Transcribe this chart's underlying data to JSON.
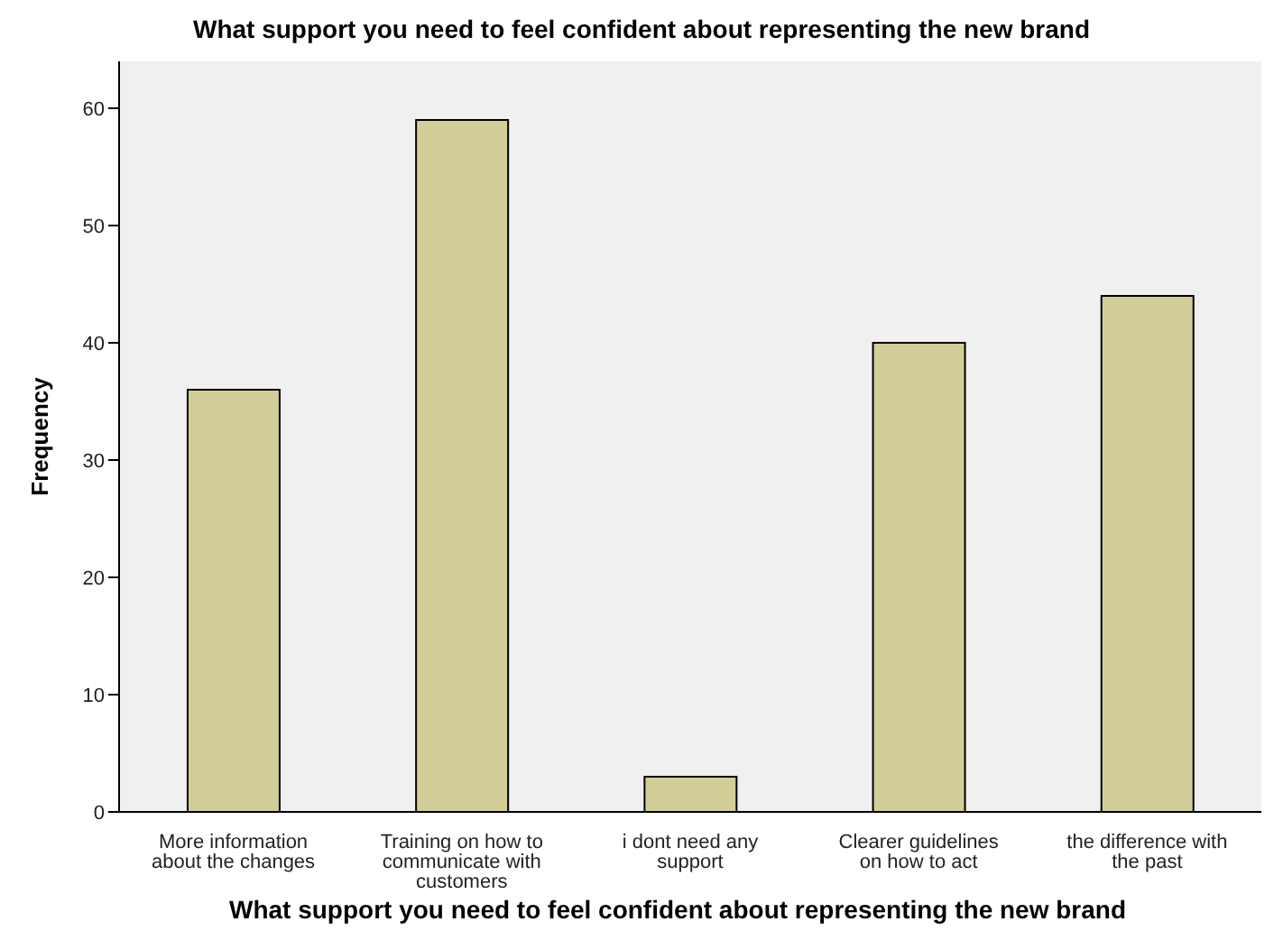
{
  "chart_data": {
    "type": "bar",
    "title": "What support you need to feel confident about representing the new brand",
    "xlabel": "What support you need to feel confident about representing the new brand",
    "ylabel": "Frequency",
    "categories": [
      "More information about the changes",
      "Training on how to communicate with customers",
      "i dont need any support",
      "Clearer guidelines on how to act",
      "the difference with the past"
    ],
    "values": [
      36,
      59,
      3,
      40,
      44
    ],
    "color": "#d3ce97",
    "ylim": [
      0,
      64
    ],
    "yticks": [
      0,
      10,
      20,
      30,
      40,
      50,
      60
    ],
    "grid": false
  }
}
